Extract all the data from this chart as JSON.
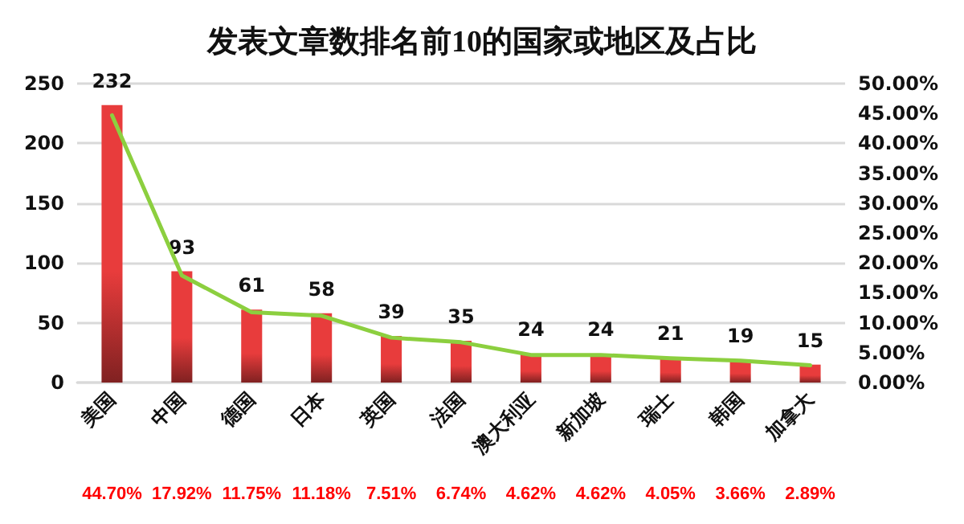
{
  "chart_data": {
    "type": "bar",
    "title": "发表文章数排名前10的国家或地区及占比",
    "categories": [
      "美国",
      "中国",
      "德国",
      "日本",
      "英国",
      "法国",
      "澳大利亚",
      "新加坡",
      "瑞士",
      "韩国",
      "加拿大"
    ],
    "series": [
      {
        "color": "#e83c3c",
        "values": [
          232,
          93,
          61,
          58,
          39,
          35,
          24,
          24,
          21,
          19,
          15
        ],
        "value_labels": [
          "232",
          "93",
          "61",
          "58",
          "39",
          "35",
          "24",
          "24",
          "21",
          "19",
          "15"
        ]
      },
      {
        "type": "line",
        "axis": "y2",
        "color": "#8ccf3f",
        "values": [
          44.7,
          17.92,
          11.75,
          11.18,
          7.51,
          6.74,
          4.62,
          4.62,
          4.05,
          3.66,
          2.89
        ],
        "value_labels": [
          "44.70%",
          "17.92%",
          "11.75%",
          "11.18%",
          "7.51%",
          "6.74%",
          "4.62%",
          "4.62%",
          "4.05%",
          "3.66%",
          "2.89%"
        ]
      }
    ],
    "ylim": [
      0,
      250
    ],
    "yticks": [
      0,
      50,
      100,
      150,
      200,
      250
    ],
    "y2lim": [
      0,
      50
    ],
    "y2ticks": [
      {
        "value": 0,
        "label": "0.00%"
      },
      {
        "value": 5,
        "label": "5.00%"
      },
      {
        "value": 10,
        "label": "10.00%"
      },
      {
        "value": 15,
        "label": "15.00%"
      },
      {
        "value": 20,
        "label": "20.00%"
      },
      {
        "value": 25,
        "label": "25.00%"
      },
      {
        "value": 30,
        "label": "30.00%"
      },
      {
        "value": 35,
        "label": "35.00%"
      },
      {
        "value": 40,
        "label": "40.00%"
      },
      {
        "value": 45,
        "label": "45.00%"
      },
      {
        "value": 50,
        "label": "50.00%"
      }
    ],
    "grid": "y",
    "marker": "none",
    "line_style": "solid"
  }
}
